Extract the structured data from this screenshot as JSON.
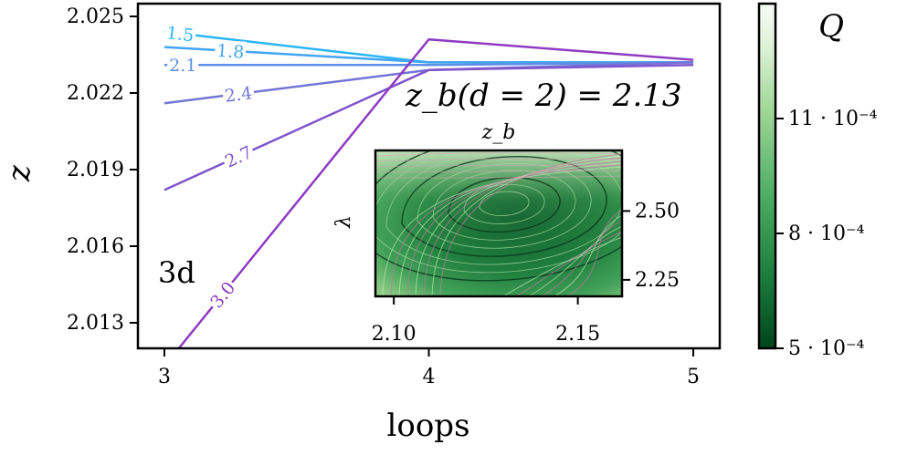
{
  "chart_data": {
    "type": "line",
    "xlabel": "loops",
    "ylabel": "z",
    "x": [
      3,
      4,
      5
    ],
    "xticks": [
      "3",
      "4",
      "5"
    ],
    "yticks": [
      "2.013",
      "2.016",
      "2.019",
      "2.022",
      "2.025"
    ],
    "ytick_values": [
      2.013,
      2.016,
      2.019,
      2.022,
      2.025
    ],
    "xlim": [
      2.9,
      5.1
    ],
    "ylim": [
      2.012,
      2.0255
    ],
    "series": [
      {
        "name": "1.5",
        "color": "#29b6f6",
        "values": [
          2.0244,
          2.0232,
          2.0232
        ]
      },
      {
        "name": "1.8",
        "color": "#42a5f5",
        "values": [
          2.0238,
          2.0232,
          2.0232
        ]
      },
      {
        "name": "2.1",
        "color": "#5c8fe6",
        "values": [
          2.0231,
          2.0231,
          2.0232
        ]
      },
      {
        "name": "2.4",
        "color": "#7474d8",
        "values": [
          2.0216,
          2.0229,
          2.0232
        ]
      },
      {
        "name": "2.7",
        "color": "#8155cd",
        "values": [
          2.0182,
          2.0229,
          2.0231
        ]
      },
      {
        "name": "3.0",
        "color": "#8e3bc2",
        "values": [
          2.0113,
          2.0241,
          2.0233
        ]
      }
    ],
    "panel_label": "3d",
    "annotation": "z_b(d = 2) = 2.13",
    "inset": {
      "type": "heatmap",
      "title": "z_b",
      "ylabel": "λ",
      "xticks": [
        "2.10",
        "2.15"
      ],
      "xtick_values": [
        2.1,
        2.15
      ],
      "yticks": [
        "2.25",
        "2.50"
      ],
      "ytick_values": [
        2.25,
        2.5
      ],
      "xlim": [
        2.095,
        2.162
      ],
      "ylim": [
        2.19,
        2.72
      ],
      "minimum": {
        "x": 2.13,
        "y": 2.53
      }
    },
    "colorbar": {
      "label": "Q",
      "ticks": [
        "5 · 10⁻⁴",
        "8 · 10⁻⁴",
        "11 · 10⁻⁴"
      ],
      "tick_values": [
        5,
        8,
        11
      ],
      "range": [
        5,
        14
      ],
      "colormap": "Greens_r"
    }
  }
}
